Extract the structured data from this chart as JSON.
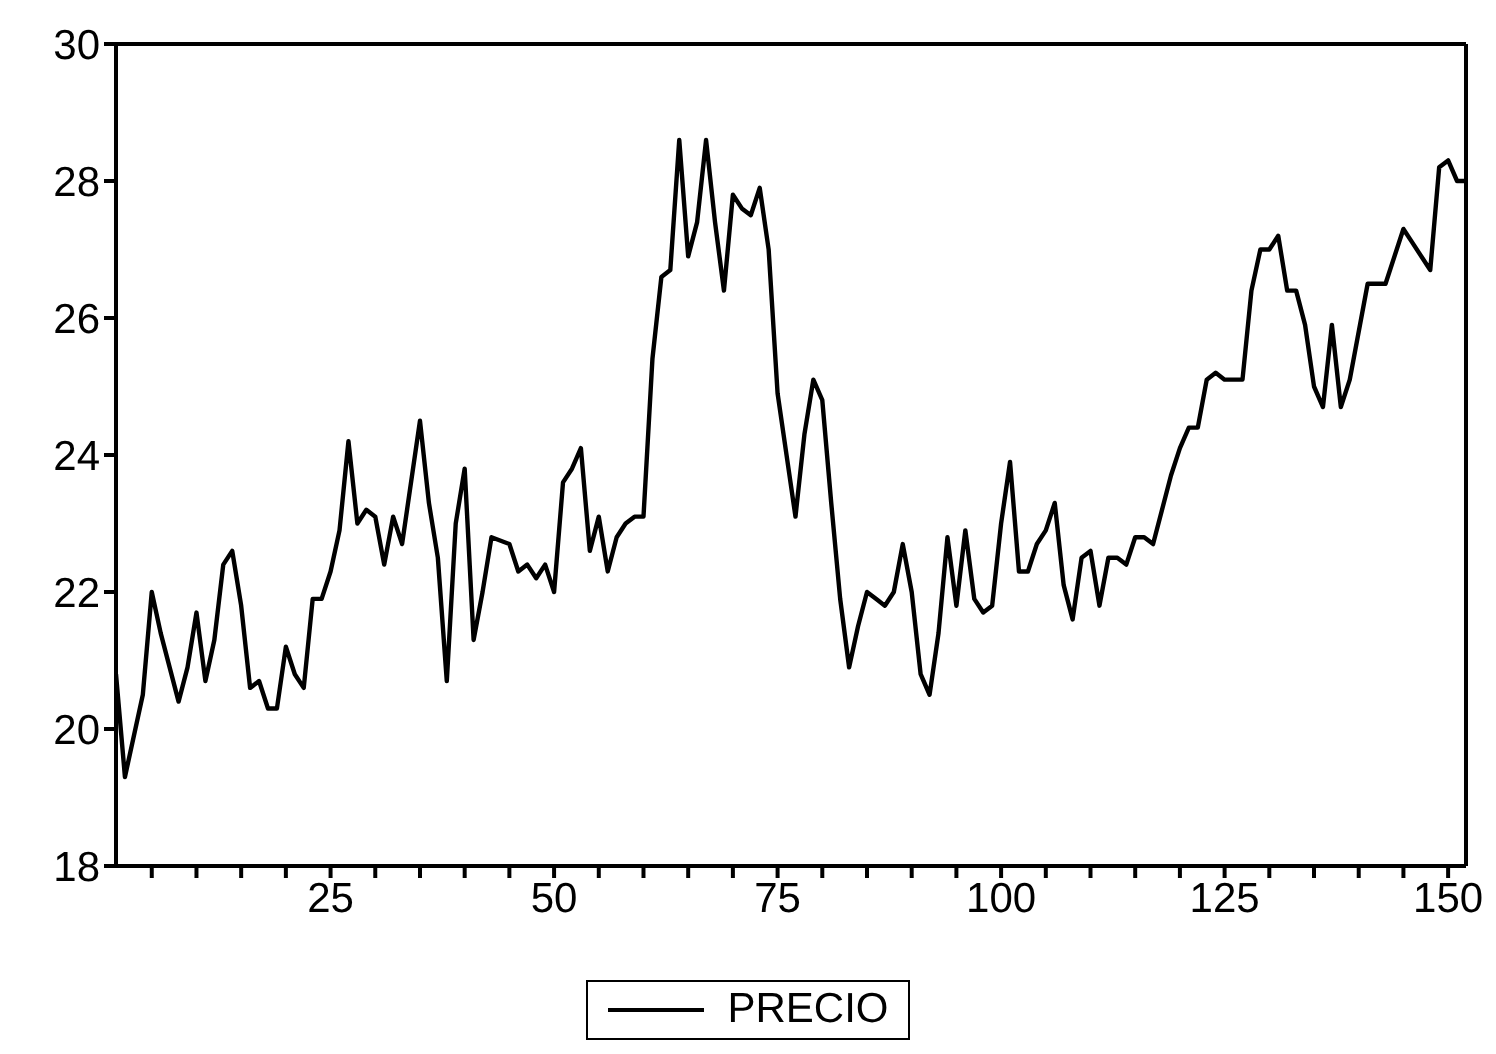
{
  "chart_data": {
    "type": "line",
    "legend": "bottom",
    "marker": "none",
    "line_style": "solid",
    "xlim": [
      1,
      152
    ],
    "ylim": [
      18,
      30
    ],
    "xticks": [
      {
        "value": 5,
        "label": null
      },
      {
        "value": 10,
        "label": null
      },
      {
        "value": 15,
        "label": null
      },
      {
        "value": 20,
        "label": null
      },
      25,
      {
        "value": 30,
        "label": null
      },
      {
        "value": 35,
        "label": null
      },
      {
        "value": 40,
        "label": null
      },
      {
        "value": 45,
        "label": null
      },
      50,
      {
        "value": 55,
        "label": null
      },
      {
        "value": 60,
        "label": null
      },
      {
        "value": 65,
        "label": null
      },
      {
        "value": 70,
        "label": null
      },
      75,
      {
        "value": 80,
        "label": null
      },
      {
        "value": 85,
        "label": null
      },
      {
        "value": 90,
        "label": null
      },
      {
        "value": 95,
        "label": null
      },
      100,
      {
        "value": 105,
        "label": null
      },
      {
        "value": 110,
        "label": null
      },
      {
        "value": 115,
        "label": null
      },
      {
        "value": 120,
        "label": null
      },
      125,
      {
        "value": 130,
        "label": null
      },
      {
        "value": 135,
        "label": null
      },
      {
        "value": 140,
        "label": null
      },
      {
        "value": 145,
        "label": null
      },
      150
    ],
    "yticks": [
      18,
      20,
      22,
      24,
      26,
      28,
      30
    ],
    "x": [
      1,
      2,
      4,
      5,
      6,
      7,
      8,
      9,
      10,
      11,
      12,
      13,
      14,
      15,
      16,
      17,
      18,
      19,
      20,
      21,
      22,
      23,
      24,
      25,
      26,
      27,
      28,
      29,
      30,
      31,
      32,
      33,
      35,
      36,
      37,
      38,
      39,
      40,
      41,
      42,
      43,
      45,
      46,
      47,
      48,
      49,
      50,
      51,
      52,
      53,
      54,
      55,
      56,
      57,
      58,
      59,
      60,
      61,
      62,
      63,
      64,
      65,
      66,
      67,
      68,
      69,
      70,
      71,
      72,
      73,
      74,
      75,
      76,
      77,
      78,
      79,
      80,
      81,
      82,
      83,
      84,
      85,
      86,
      87,
      88,
      89,
      90,
      91,
      92,
      93,
      94,
      95,
      96,
      97,
      98,
      99,
      100,
      101,
      102,
      103,
      104,
      105,
      106,
      107,
      108,
      109,
      110,
      111,
      112,
      113,
      114,
      115,
      116,
      117,
      119,
      120,
      121,
      122,
      123,
      124,
      125,
      127,
      128,
      129,
      130,
      131,
      132,
      133,
      134,
      135,
      136,
      137,
      138,
      139,
      141,
      143,
      145,
      146,
      148,
      149,
      150,
      151,
      152
    ],
    "series": [
      {
        "name": "PRECIO",
        "color": "#000000",
        "values": [
          20.8,
          19.3,
          20.5,
          22.0,
          21.4,
          20.9,
          20.4,
          20.9,
          21.7,
          20.7,
          21.3,
          22.4,
          22.6,
          21.8,
          20.6,
          20.7,
          20.3,
          20.3,
          21.2,
          20.8,
          20.6,
          21.9,
          21.9,
          22.3,
          22.9,
          24.2,
          23.0,
          23.2,
          23.1,
          22.4,
          23.1,
          22.7,
          24.5,
          23.3,
          22.5,
          20.7,
          23.0,
          23.8,
          21.3,
          22.0,
          22.8,
          22.7,
          22.3,
          22.4,
          22.2,
          22.4,
          22.0,
          23.6,
          23.8,
          24.1,
          22.6,
          23.1,
          22.3,
          22.8,
          23.0,
          23.1,
          23.1,
          25.4,
          26.6,
          26.7,
          28.6,
          26.9,
          27.4,
          28.6,
          27.4,
          26.4,
          27.8,
          27.6,
          27.5,
          27.9,
          27.0,
          24.9,
          24.0,
          23.1,
          24.3,
          25.1,
          24.8,
          23.3,
          21.9,
          20.9,
          21.5,
          22.0,
          21.9,
          21.8,
          22.0,
          22.7,
          22.0,
          20.8,
          20.5,
          21.4,
          22.8,
          21.8,
          22.9,
          21.9,
          21.7,
          21.8,
          23.0,
          23.9,
          22.3,
          22.3,
          22.7,
          22.9,
          23.3,
          22.1,
          21.6,
          22.5,
          22.6,
          21.8,
          22.5,
          22.5,
          22.4,
          22.8,
          22.8,
          22.7,
          23.7,
          24.1,
          24.4,
          24.4,
          25.1,
          25.2,
          25.1,
          25.1,
          26.4,
          27.0,
          27.0,
          27.2,
          26.4,
          26.4,
          25.9,
          25.0,
          24.7,
          25.9,
          24.7,
          25.1,
          26.5,
          26.5,
          27.3,
          27.1,
          26.7,
          28.2,
          28.3,
          28.0,
          28.0
        ]
      }
    ]
  }
}
